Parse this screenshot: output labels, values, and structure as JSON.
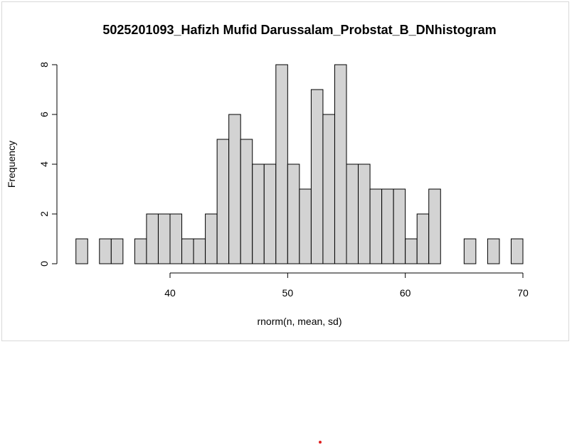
{
  "chart_data": {
    "type": "bar",
    "title": "5025201093_Hafizh Mufid Darussalam_Probstat_B_DNhistogram",
    "xlabel": "rnorm(n, mean, sd)",
    "ylabel": "Frequency",
    "bin_width": 1,
    "bins_start": [
      32,
      33,
      34,
      35,
      36,
      37,
      38,
      39,
      40,
      41,
      42,
      43,
      44,
      45,
      46,
      47,
      48,
      49,
      50,
      51,
      52,
      53,
      54,
      55,
      56,
      57,
      58,
      59,
      60,
      61,
      62,
      63,
      64,
      65,
      66,
      67,
      68,
      69
    ],
    "values": [
      1,
      0,
      1,
      1,
      0,
      1,
      2,
      2,
      2,
      1,
      1,
      2,
      5,
      6,
      5,
      4,
      4,
      8,
      4,
      3,
      7,
      6,
      8,
      4,
      4,
      3,
      3,
      3,
      1,
      2,
      3,
      0,
      0,
      1,
      0,
      1,
      0,
      1
    ],
    "xlim": [
      40,
      70
    ],
    "ylim": [
      0,
      8
    ],
    "xticks": [
      "40",
      "50",
      "60",
      "70"
    ],
    "yticks": [
      "0",
      "2",
      "4",
      "6",
      "8"
    ],
    "bar_color": "#d3d3d3"
  }
}
